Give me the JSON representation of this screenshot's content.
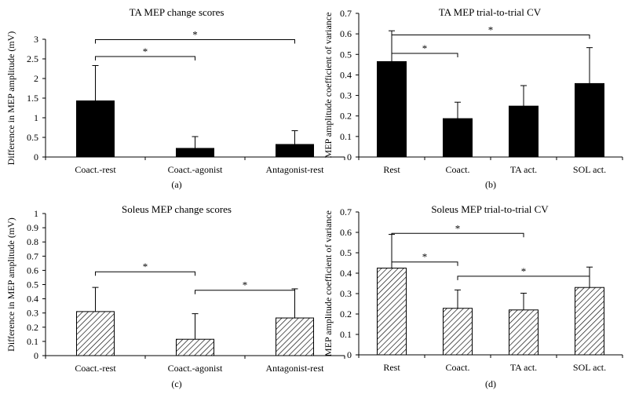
{
  "chart_data": [
    {
      "panel": "(a)",
      "type": "bar",
      "title": "TA MEP change scores",
      "ylabel": "Difference in MEP amplitude (mV)",
      "xlabel": "",
      "ylim": [
        0,
        3
      ],
      "yticks": [
        0,
        0.5,
        1,
        1.5,
        2,
        2.5,
        3
      ],
      "categories": [
        "Coact.-rest",
        "Coact.-agonist",
        "Antagonist-rest"
      ],
      "values": [
        1.43,
        0.22,
        0.32
      ],
      "errors": [
        0.9,
        0.3,
        0.35
      ],
      "fill": "solid",
      "significance": [
        {
          "from": 0,
          "to": 1,
          "label": "*",
          "y": 2.56
        },
        {
          "from": 0,
          "to": 2,
          "label": "*",
          "y": 2.99
        }
      ]
    },
    {
      "panel": "(b)",
      "type": "bar",
      "title": "TA MEP trial-to-trial CV",
      "ylabel": "MEP amplitude coefficient of variance",
      "xlabel": "",
      "ylim": [
        0,
        0.7
      ],
      "yticks": [
        0,
        0.1,
        0.2,
        0.3,
        0.4,
        0.5,
        0.6,
        0.7
      ],
      "categories": [
        "Rest",
        "Coact.",
        "TA act.",
        "SOL act."
      ],
      "values": [
        0.465,
        0.187,
        0.248,
        0.358
      ],
      "errors": [
        0.15,
        0.08,
        0.1,
        0.175
      ],
      "fill": "solid",
      "significance": [
        {
          "from": 0,
          "to": 1,
          "label": "*",
          "y": 0.505
        },
        {
          "from": 0,
          "to": 3,
          "label": "*",
          "y": 0.595
        }
      ]
    },
    {
      "panel": "(c)",
      "type": "bar",
      "title": "Soleus MEP change scores",
      "ylabel": "Difference in MEP amplitude (mV)",
      "xlabel": "",
      "ylim": [
        0,
        1
      ],
      "yticks": [
        0,
        0.1,
        0.2,
        0.3,
        0.4,
        0.5,
        0.6,
        0.7,
        0.8,
        0.9,
        1
      ],
      "categories": [
        "Coact.-rest",
        "Coact.-agonist",
        "Antagonist-rest"
      ],
      "values": [
        0.31,
        0.115,
        0.265
      ],
      "errors": [
        0.17,
        0.18,
        0.205
      ],
      "fill": "hatched",
      "significance": [
        {
          "from": 0,
          "to": 1,
          "label": "*",
          "y": 0.59
        },
        {
          "from": 1,
          "to": 2,
          "label": "*",
          "y": 0.46
        }
      ]
    },
    {
      "panel": "(d)",
      "type": "bar",
      "title": "Soleus MEP trial-to-trial CV",
      "ylabel": "MEP amplitude coefficient of variance",
      "xlabel": "",
      "ylim": [
        0,
        0.7
      ],
      "yticks": [
        0,
        0.1,
        0.2,
        0.3,
        0.4,
        0.5,
        0.6,
        0.7
      ],
      "categories": [
        "Rest",
        "Coact.",
        "TA act.",
        "SOL act."
      ],
      "values": [
        0.425,
        0.228,
        0.22,
        0.33
      ],
      "errors": [
        0.165,
        0.09,
        0.082,
        0.1
      ],
      "fill": "hatched",
      "significance": [
        {
          "from": 0,
          "to": 1,
          "label": "*",
          "y": 0.455
        },
        {
          "from": 0,
          "to": 2,
          "label": "*",
          "y": 0.595
        },
        {
          "from": 1,
          "to": 3,
          "label": "*",
          "y": 0.385
        }
      ]
    }
  ]
}
